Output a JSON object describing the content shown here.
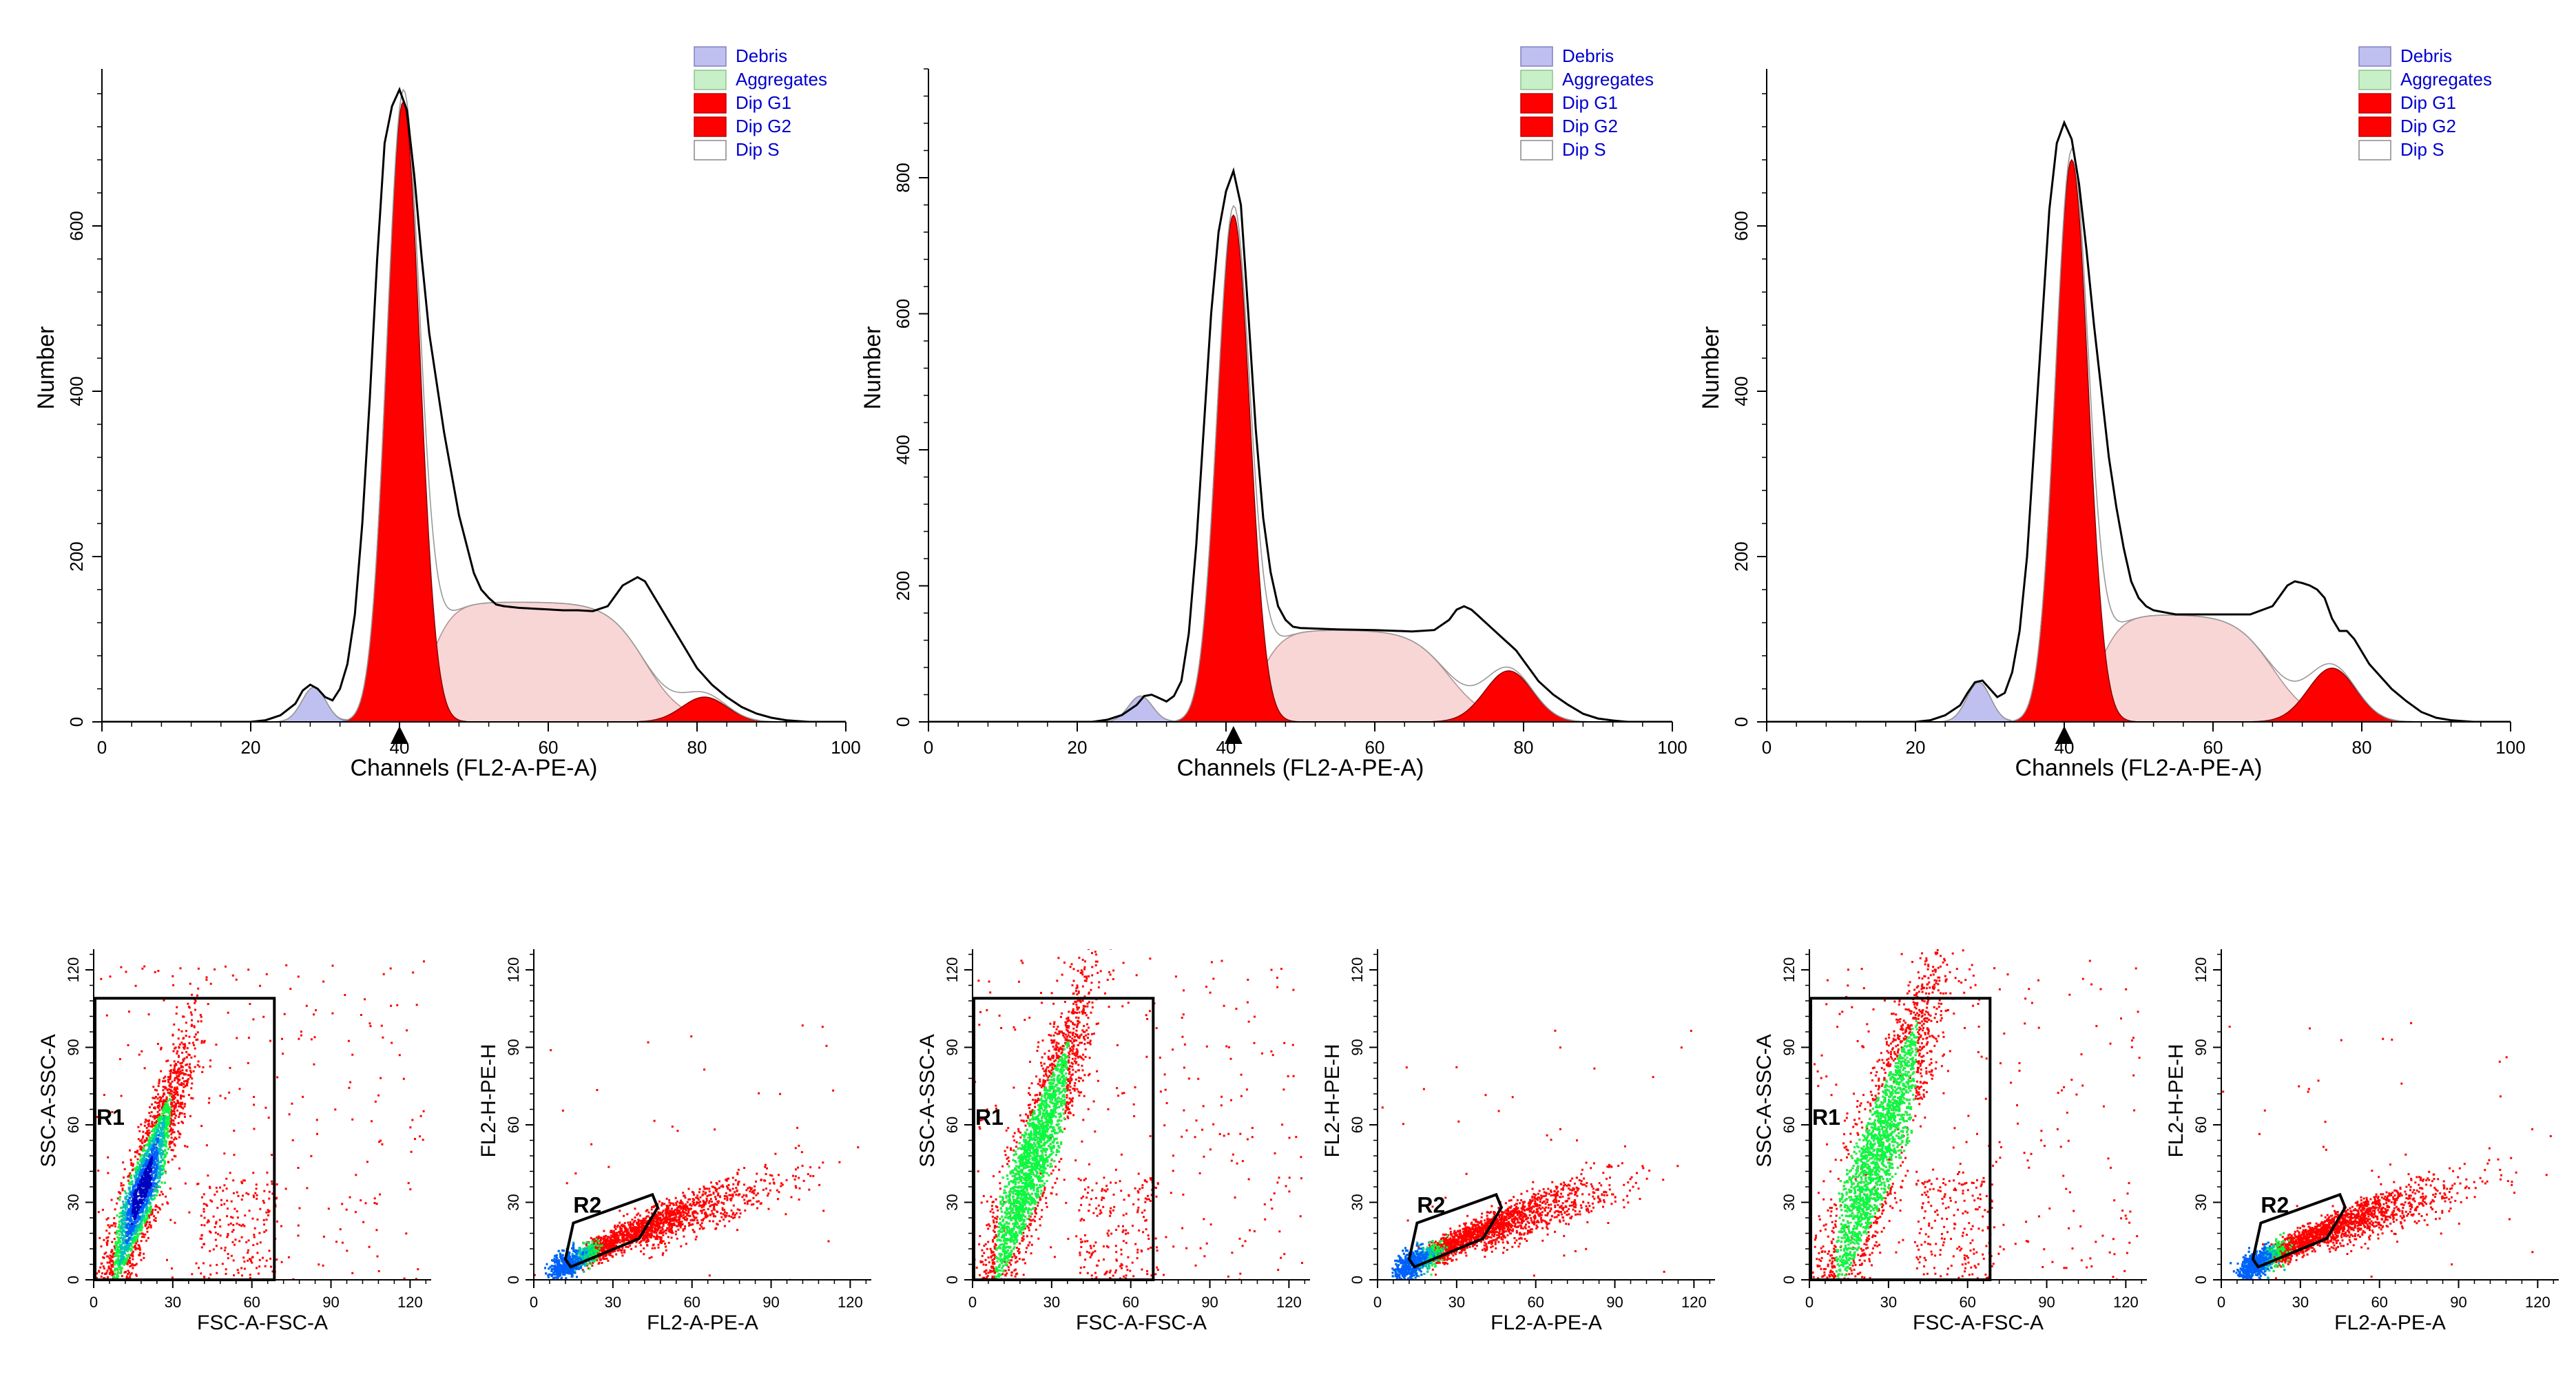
{
  "chart_data": [
    {
      "type": "area",
      "panel": "histogram-1",
      "xlabel": "Channels (FL2-A-PE-A)",
      "ylabel": "Number",
      "xlim": [
        0,
        100
      ],
      "ylim": [
        0,
        790
      ],
      "xticks": [
        0,
        20,
        40,
        60,
        80,
        100
      ],
      "yticks": [
        0,
        200,
        400,
        600
      ],
      "g1_marker": 40,
      "legend": [
        "Debris",
        "Aggregates",
        "Dip G1",
        "Dip G2",
        "Dip S"
      ],
      "legend_position": "top-right",
      "components": {
        "debris_peak": 42,
        "g1_mean": 40.5,
        "g1_peak": 750,
        "g1_sd": 2.2,
        "s_level": 145,
        "g2_mean": 81,
        "g2_peak": 30,
        "g2_sd": 3
      },
      "histogram": [
        [
          20,
          0
        ],
        [
          22,
          2
        ],
        [
          24,
          8
        ],
        [
          26,
          22
        ],
        [
          27,
          38
        ],
        [
          28,
          45
        ],
        [
          29,
          40
        ],
        [
          30,
          30
        ],
        [
          31,
          26
        ],
        [
          32,
          40
        ],
        [
          33,
          70
        ],
        [
          34,
          130
        ],
        [
          35,
          240
        ],
        [
          36,
          390
        ],
        [
          37,
          560
        ],
        [
          38,
          700
        ],
        [
          39,
          745
        ],
        [
          40,
          765
        ],
        [
          41,
          740
        ],
        [
          42,
          660
        ],
        [
          43,
          560
        ],
        [
          44,
          470
        ],
        [
          45,
          410
        ],
        [
          46,
          350
        ],
        [
          47,
          300
        ],
        [
          48,
          250
        ],
        [
          49,
          215
        ],
        [
          50,
          180
        ],
        [
          51,
          160
        ],
        [
          52,
          150
        ],
        [
          53,
          142
        ],
        [
          54,
          140
        ],
        [
          56,
          138
        ],
        [
          58,
          137
        ],
        [
          60,
          136
        ],
        [
          62,
          135
        ],
        [
          64,
          135
        ],
        [
          66,
          134
        ],
        [
          68,
          140
        ],
        [
          70,
          165
        ],
        [
          72,
          175
        ],
        [
          73,
          170
        ],
        [
          74,
          155
        ],
        [
          75,
          140
        ],
        [
          76,
          125
        ],
        [
          77,
          110
        ],
        [
          78,
          95
        ],
        [
          79,
          80
        ],
        [
          80,
          65
        ],
        [
          82,
          45
        ],
        [
          84,
          30
        ],
        [
          86,
          18
        ],
        [
          88,
          10
        ],
        [
          90,
          5
        ],
        [
          92,
          2
        ],
        [
          95,
          0
        ]
      ]
    },
    {
      "type": "area",
      "panel": "histogram-2",
      "xlabel": "Channels (FL2-A-PE-A)",
      "ylabel": "Number",
      "xlim": [
        0,
        100
      ],
      "ylim": [
        0,
        960
      ],
      "xticks": [
        0,
        20,
        40,
        60,
        80,
        100
      ],
      "yticks": [
        0,
        200,
        400,
        600,
        800
      ],
      "g1_marker": 41,
      "legend": [
        "Debris",
        "Aggregates",
        "Dip G1",
        "Dip G2",
        "Dip S"
      ],
      "legend_position": "top-right",
      "components": {
        "debris_peak": 38,
        "g1_mean": 41,
        "g1_peak": 745,
        "g1_sd": 2.2,
        "s_level": 135,
        "g2_mean": 78,
        "g2_peak": 75,
        "g2_sd": 3.2
      },
      "histogram": [
        [
          22,
          0
        ],
        [
          24,
          3
        ],
        [
          26,
          10
        ],
        [
          28,
          25
        ],
        [
          29,
          38
        ],
        [
          30,
          40
        ],
        [
          31,
          35
        ],
        [
          32,
          30
        ],
        [
          33,
          38
        ],
        [
          34,
          60
        ],
        [
          35,
          130
        ],
        [
          36,
          260
        ],
        [
          37,
          430
        ],
        [
          38,
          600
        ],
        [
          39,
          720
        ],
        [
          40,
          780
        ],
        [
          41,
          810
        ],
        [
          42,
          760
        ],
        [
          43,
          600
        ],
        [
          44,
          430
        ],
        [
          45,
          300
        ],
        [
          46,
          220
        ],
        [
          47,
          170
        ],
        [
          48,
          150
        ],
        [
          49,
          140
        ],
        [
          50,
          138
        ],
        [
          55,
          136
        ],
        [
          60,
          135
        ],
        [
          65,
          133
        ],
        [
          68,
          135
        ],
        [
          70,
          150
        ],
        [
          71,
          165
        ],
        [
          72,
          170
        ],
        [
          73,
          165
        ],
        [
          74,
          155
        ],
        [
          75,
          145
        ],
        [
          76,
          135
        ],
        [
          77,
          125
        ],
        [
          78,
          115
        ],
        [
          79,
          105
        ],
        [
          80,
          90
        ],
        [
          81,
          75
        ],
        [
          82,
          60
        ],
        [
          84,
          40
        ],
        [
          86,
          25
        ],
        [
          88,
          12
        ],
        [
          90,
          5
        ],
        [
          92,
          2
        ],
        [
          94,
          0
        ]
      ]
    },
    {
      "type": "area",
      "panel": "histogram-3",
      "xlabel": "Channels (FL2-A-PE-A)",
      "ylabel": "Number",
      "xlim": [
        0,
        100
      ],
      "ylim": [
        0,
        790
      ],
      "xticks": [
        0,
        20,
        40,
        60,
        80,
        100
      ],
      "yticks": [
        0,
        200,
        400,
        600
      ],
      "g1_marker": 40,
      "legend": [
        "Debris",
        "Aggregates",
        "Dip G1",
        "Dip G2",
        "Dip S"
      ],
      "legend_position": "top-right",
      "components": {
        "debris_peak": 48,
        "g1_mean": 41,
        "g1_peak": 680,
        "g1_sd": 2.2,
        "s_level": 130,
        "g2_mean": 76,
        "g2_peak": 65,
        "g2_sd": 3.2
      },
      "histogram": [
        [
          20,
          0
        ],
        [
          22,
          2
        ],
        [
          24,
          8
        ],
        [
          26,
          20
        ],
        [
          27,
          35
        ],
        [
          28,
          48
        ],
        [
          29,
          50
        ],
        [
          30,
          40
        ],
        [
          31,
          30
        ],
        [
          32,
          35
        ],
        [
          33,
          60
        ],
        [
          34,
          110
        ],
        [
          35,
          200
        ],
        [
          36,
          340
        ],
        [
          37,
          480
        ],
        [
          38,
          620
        ],
        [
          39,
          700
        ],
        [
          40,
          725
        ],
        [
          41,
          705
        ],
        [
          42,
          650
        ],
        [
          43,
          570
        ],
        [
          44,
          480
        ],
        [
          45,
          400
        ],
        [
          46,
          320
        ],
        [
          47,
          260
        ],
        [
          48,
          210
        ],
        [
          49,
          170
        ],
        [
          50,
          150
        ],
        [
          51,
          140
        ],
        [
          52,
          135
        ],
        [
          55,
          130
        ],
        [
          60,
          130
        ],
        [
          65,
          130
        ],
        [
          68,
          140
        ],
        [
          70,
          165
        ],
        [
          71,
          170
        ],
        [
          72,
          168
        ],
        [
          73,
          165
        ],
        [
          74,
          160
        ],
        [
          75,
          150
        ],
        [
          76,
          125
        ],
        [
          77,
          110
        ],
        [
          78,
          110
        ],
        [
          79,
          100
        ],
        [
          80,
          85
        ],
        [
          81,
          70
        ],
        [
          82,
          60
        ],
        [
          83,
          50
        ],
        [
          84,
          40
        ],
        [
          86,
          25
        ],
        [
          88,
          12
        ],
        [
          90,
          5
        ],
        [
          92,
          2
        ],
        [
          95,
          0
        ]
      ]
    },
    {
      "type": "scatter",
      "panel": "scatter-ssc-fsc-1",
      "xlabel": "FSC-A-FSC-A",
      "ylabel": "SSC-A-SSC-A",
      "xlim": [
        0,
        128
      ],
      "ylim": [
        0,
        128
      ],
      "ticks": [
        0,
        30,
        60,
        90,
        120
      ],
      "gate": {
        "label": "R1",
        "x": [
          0,
          68
        ],
        "y": [
          0,
          109
        ]
      },
      "population": {
        "center": [
          18,
          35
        ],
        "spread": [
          4,
          14
        ]
      }
    },
    {
      "type": "scatter",
      "panel": "scatter-fl2h-fl2a-1",
      "xlabel": "FL2-A-PE-A",
      "ylabel": "FL2-H-PE-H",
      "xlim": [
        0,
        128
      ],
      "ylim": [
        0,
        128
      ],
      "ticks": [
        0,
        30,
        60,
        90,
        120
      ],
      "gate": {
        "label": "R2",
        "polygon": [
          [
            12,
            8
          ],
          [
            15,
            22
          ],
          [
            45,
            33
          ],
          [
            47,
            28
          ],
          [
            40,
            16
          ],
          [
            14,
            5
          ]
        ]
      }
    },
    {
      "type": "scatter",
      "panel": "scatter-ssc-fsc-2",
      "xlabel": "FSC-A-FSC-A",
      "ylabel": "SSC-A-SSC-A",
      "xlim": [
        0,
        128
      ],
      "ylim": [
        0,
        128
      ],
      "ticks": [
        0,
        30,
        60,
        90,
        120
      ],
      "gate": {
        "label": "R1",
        "x": [
          0,
          68
        ],
        "y": [
          0,
          109
        ]
      },
      "population": {
        "center": [
          22,
          45
        ],
        "spread": [
          5,
          18
        ]
      }
    },
    {
      "type": "scatter",
      "panel": "scatter-fl2h-fl2a-2",
      "xlabel": "FL2-A-PE-A",
      "ylabel": "FL2-H-PE-H",
      "xlim": [
        0,
        128
      ],
      "ylim": [
        0,
        128
      ],
      "ticks": [
        0,
        30,
        60,
        90,
        120
      ],
      "gate": {
        "label": "R2",
        "polygon": [
          [
            12,
            8
          ],
          [
            15,
            22
          ],
          [
            45,
            33
          ],
          [
            47,
            28
          ],
          [
            40,
            16
          ],
          [
            14,
            5
          ]
        ]
      }
    },
    {
      "type": "scatter",
      "panel": "scatter-ssc-fsc-3",
      "xlabel": "FSC-A-FSC-A",
      "ylabel": "SSC-A-SSC-A",
      "xlim": [
        0,
        128
      ],
      "ylim": [
        0,
        128
      ],
      "ticks": [
        0,
        30,
        60,
        90,
        120
      ],
      "gate": {
        "label": "R1",
        "x": [
          0,
          68
        ],
        "y": [
          0,
          109
        ]
      },
      "population": {
        "center": [
          25,
          48
        ],
        "spread": [
          6,
          20
        ]
      }
    },
    {
      "type": "scatter",
      "panel": "scatter-fl2h-fl2a-3",
      "xlabel": "FL2-A-PE-A",
      "ylabel": "FL2-H-PE-H",
      "xlim": [
        0,
        128
      ],
      "ylim": [
        0,
        128
      ],
      "ticks": [
        0,
        30,
        60,
        90,
        120
      ],
      "gate": {
        "label": "R2",
        "polygon": [
          [
            12,
            8
          ],
          [
            15,
            22
          ],
          [
            45,
            33
          ],
          [
            47,
            28
          ],
          [
            40,
            16
          ],
          [
            14,
            5
          ]
        ]
      }
    }
  ],
  "colors": {
    "debris": "#c0c0f0",
    "aggregates": "#c8f0c8",
    "g1": "#ff0000",
    "g2": "#ff0000",
    "s": "#f9d6d6",
    "legend_text": "#0000cc",
    "scatter": "#ff0000",
    "density": [
      "#ffff00",
      "#00ff40",
      "#00c0c0",
      "#0060ff",
      "#0000c0"
    ]
  }
}
